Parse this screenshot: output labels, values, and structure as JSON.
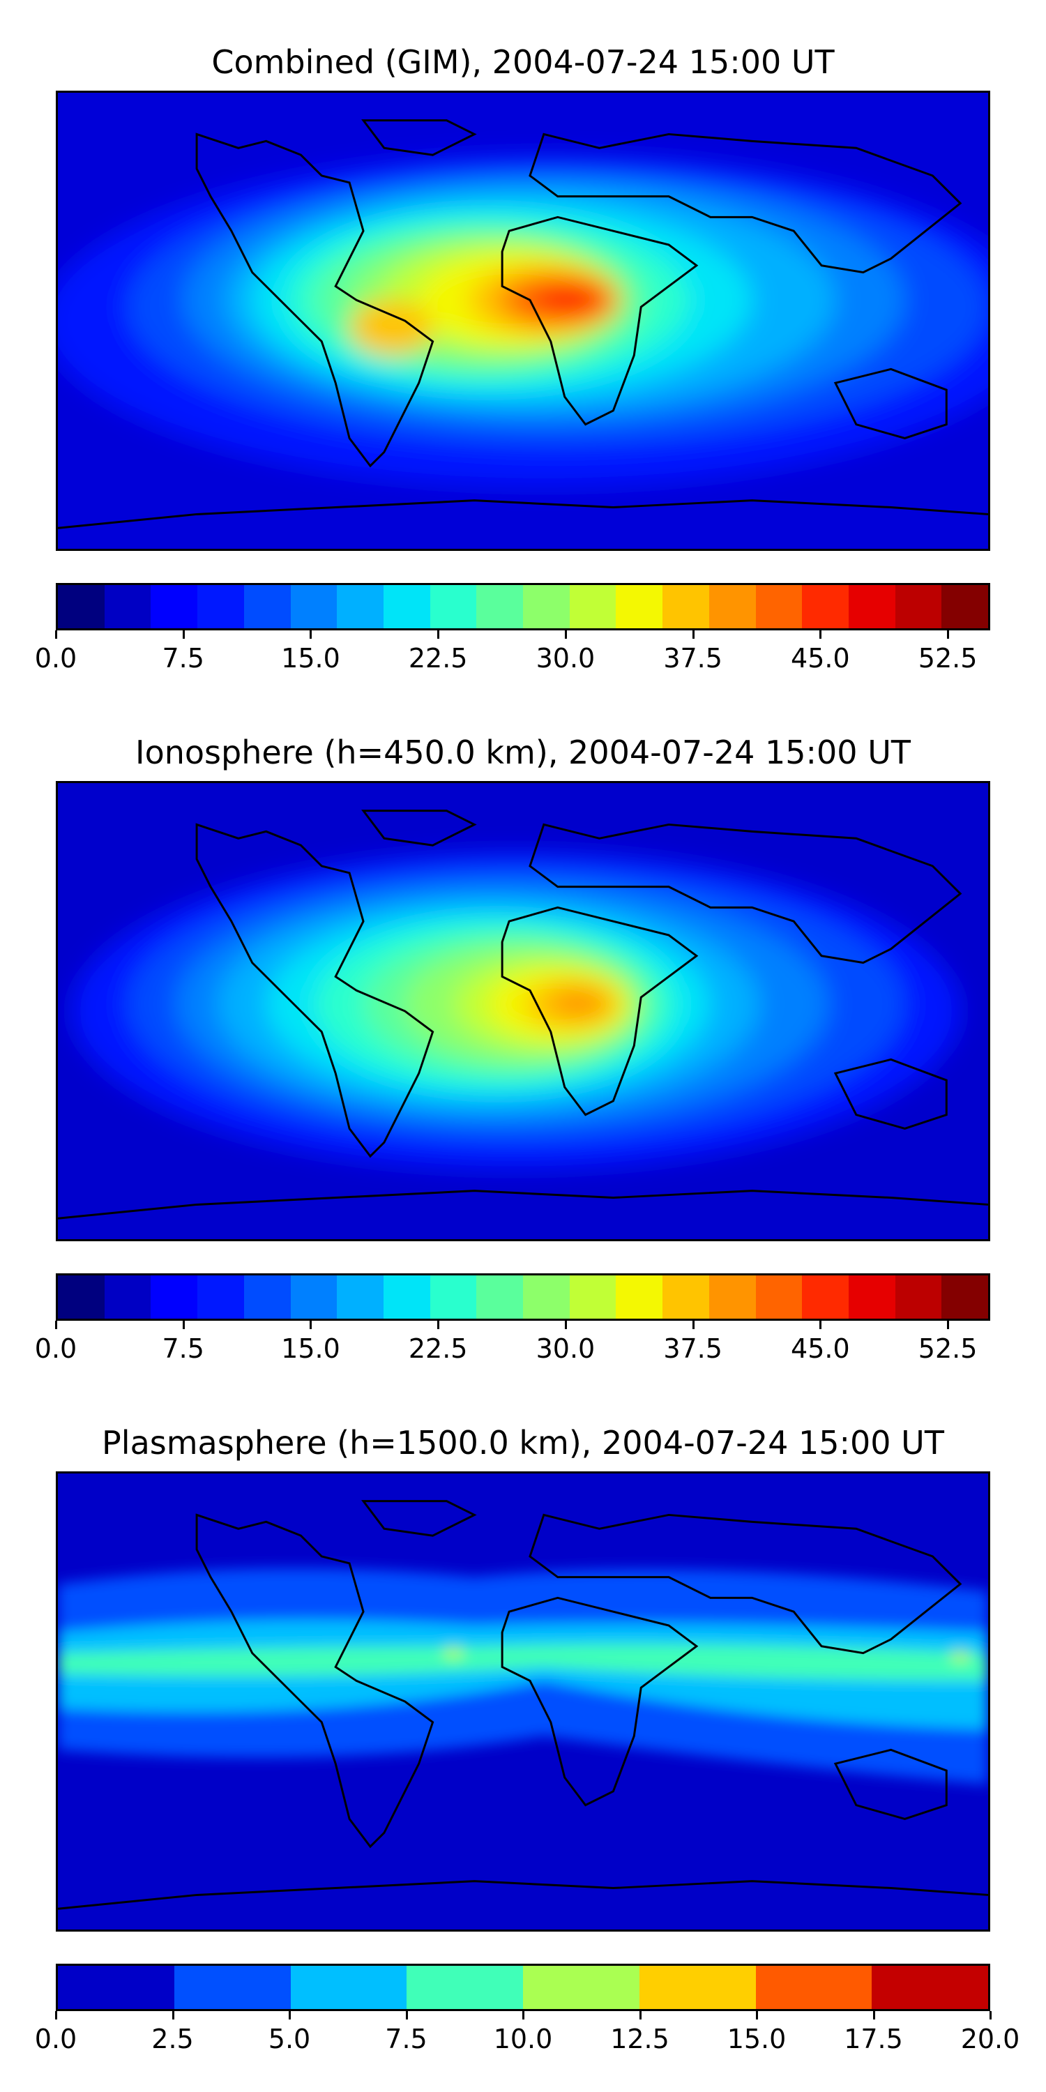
{
  "panels": [
    {
      "title": "Combined (GIM), 2004-07-24 15:00 UT",
      "colorbar": {
        "colors": [
          "#00007f",
          "#0000c4",
          "#0000ff",
          "#0018ff",
          "#004cff",
          "#0080ff",
          "#00b0ff",
          "#00e4f8",
          "#29ffce",
          "#5aff9c",
          "#8dff6a",
          "#c1ff36",
          "#f4f802",
          "#ffc400",
          "#ff9400",
          "#ff6400",
          "#ff2a00",
          "#e60000",
          "#bc0000",
          "#840000"
        ],
        "ticks": [
          "0.0",
          "7.5",
          "15.0",
          "22.5",
          "30.0",
          "37.5",
          "45.0",
          "52.5"
        ],
        "tick_values": [
          0,
          7.5,
          15,
          22.5,
          30,
          37.5,
          45,
          52.5
        ],
        "range": [
          0,
          55
        ]
      }
    },
    {
      "title": "Ionosphere  (h=450.0 km), 2004-07-24 15:00 UT",
      "colorbar": {
        "colors": [
          "#00007f",
          "#0000c4",
          "#0000ff",
          "#0018ff",
          "#004cff",
          "#0080ff",
          "#00b0ff",
          "#00e4f8",
          "#29ffce",
          "#5aff9c",
          "#8dff6a",
          "#c1ff36",
          "#f4f802",
          "#ffc400",
          "#ff9400",
          "#ff6400",
          "#ff2a00",
          "#e60000",
          "#bc0000",
          "#840000"
        ],
        "ticks": [
          "0.0",
          "7.5",
          "15.0",
          "22.5",
          "30.0",
          "37.5",
          "45.0",
          "52.5"
        ],
        "tick_values": [
          0,
          7.5,
          15,
          22.5,
          30,
          37.5,
          45,
          52.5
        ],
        "range": [
          0,
          55
        ]
      }
    },
    {
      "title": "Plasmasphere (h=1500.0 km), 2004-07-24 15:00 UT",
      "colorbar": {
        "colors": [
          "#0000c8",
          "#0050ff",
          "#00bfff",
          "#40ffb8",
          "#aaff52",
          "#ffcf00",
          "#ff5a00",
          "#c40000"
        ],
        "ticks": [
          "0.0",
          "2.5",
          "5.0",
          "7.5",
          "10.0",
          "12.5",
          "15.0",
          "17.5",
          "20.0"
        ],
        "tick_values": [
          0,
          2.5,
          5,
          7.5,
          10,
          12.5,
          15,
          17.5,
          20
        ],
        "range": [
          0,
          20
        ]
      }
    }
  ]
}
